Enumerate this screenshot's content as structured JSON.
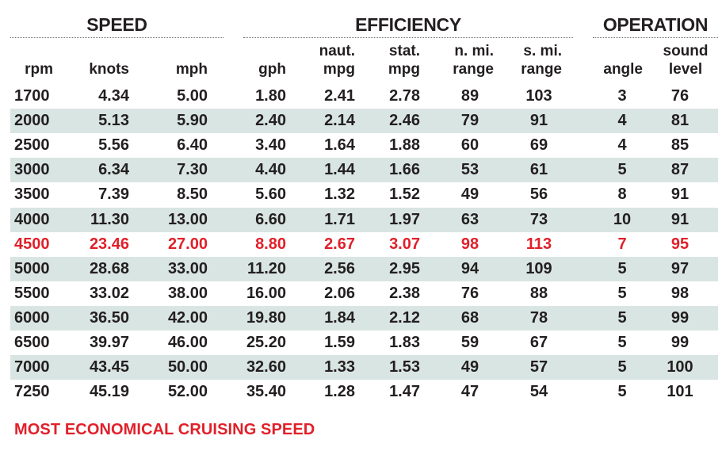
{
  "groups": {
    "speed": "SPEED",
    "efficiency": "EFFICIENCY",
    "operation": "OPERATION"
  },
  "columns": [
    {
      "key": "rpm",
      "line1": "",
      "line2": "rpm"
    },
    {
      "key": "knots",
      "line1": "",
      "line2": "knots"
    },
    {
      "key": "mph",
      "line1": "",
      "line2": "mph"
    },
    {
      "key": "gph",
      "line1": "",
      "line2": "gph"
    },
    {
      "key": "naut_mpg",
      "line1": "naut.",
      "line2": "mpg"
    },
    {
      "key": "stat_mpg",
      "line1": "stat.",
      "line2": "mpg"
    },
    {
      "key": "n_mi_range",
      "line1": "n. mi.",
      "line2": "range"
    },
    {
      "key": "s_mi_range",
      "line1": "s. mi.",
      "line2": "range"
    },
    {
      "key": "angle",
      "line1": "",
      "line2": "angle"
    },
    {
      "key": "sound_level",
      "line1": "sound",
      "line2": "level"
    }
  ],
  "rows": [
    {
      "highlight": false,
      "cells": [
        "1700",
        "4.34",
        "5.00",
        "1.80",
        "2.41",
        "2.78",
        "89",
        "103",
        "3",
        "76"
      ]
    },
    {
      "highlight": false,
      "cells": [
        "2000",
        "5.13",
        "5.90",
        "2.40",
        "2.14",
        "2.46",
        "79",
        "91",
        "4",
        "81"
      ]
    },
    {
      "highlight": false,
      "cells": [
        "2500",
        "5.56",
        "6.40",
        "3.40",
        "1.64",
        "1.88",
        "60",
        "69",
        "4",
        "85"
      ]
    },
    {
      "highlight": false,
      "cells": [
        "3000",
        "6.34",
        "7.30",
        "4.40",
        "1.44",
        "1.66",
        "53",
        "61",
        "5",
        "87"
      ]
    },
    {
      "highlight": false,
      "cells": [
        "3500",
        "7.39",
        "8.50",
        "5.60",
        "1.32",
        "1.52",
        "49",
        "56",
        "8",
        "91"
      ]
    },
    {
      "highlight": false,
      "cells": [
        "4000",
        "11.30",
        "13.00",
        "6.60",
        "1.71",
        "1.97",
        "63",
        "73",
        "10",
        "91"
      ]
    },
    {
      "highlight": true,
      "cells": [
        "4500",
        "23.46",
        "27.00",
        "8.80",
        "2.67",
        "3.07",
        "98",
        "113",
        "7",
        "95"
      ]
    },
    {
      "highlight": false,
      "cells": [
        "5000",
        "28.68",
        "33.00",
        "11.20",
        "2.56",
        "2.95",
        "94",
        "109",
        "5",
        "97"
      ]
    },
    {
      "highlight": false,
      "cells": [
        "5500",
        "33.02",
        "38.00",
        "16.00",
        "2.06",
        "2.38",
        "76",
        "88",
        "5",
        "98"
      ]
    },
    {
      "highlight": false,
      "cells": [
        "6000",
        "36.50",
        "42.00",
        "19.80",
        "1.84",
        "2.12",
        "68",
        "78",
        "5",
        "99"
      ]
    },
    {
      "highlight": false,
      "cells": [
        "6500",
        "39.97",
        "46.00",
        "25.20",
        "1.59",
        "1.83",
        "59",
        "67",
        "5",
        "99"
      ]
    },
    {
      "highlight": false,
      "cells": [
        "7000",
        "43.45",
        "50.00",
        "32.60",
        "1.33",
        "1.53",
        "49",
        "57",
        "5",
        "100"
      ]
    },
    {
      "highlight": false,
      "cells": [
        "7250",
        "45.19",
        "52.00",
        "35.40",
        "1.28",
        "1.47",
        "47",
        "54",
        "5",
        "101"
      ]
    }
  ],
  "footnote": "MOST ECONOMICAL CRUISING SPEED",
  "colors": {
    "text": "#231f20",
    "highlight": "#e0202a",
    "stripe": "#d9e5e2"
  }
}
